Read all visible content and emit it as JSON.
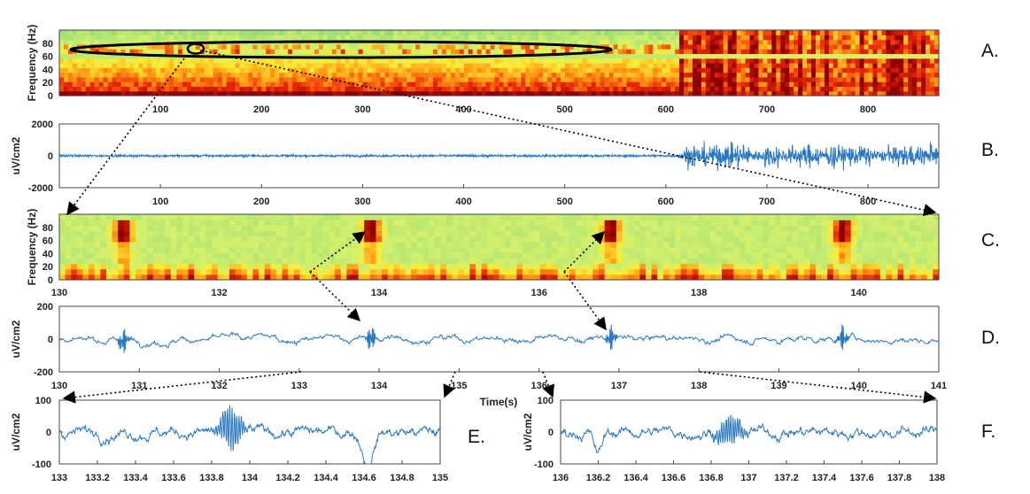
{
  "chart_data": [
    {
      "id": "A",
      "type": "heatmap",
      "panel_label": "A.",
      "ylabel": "Frequency (Hz)",
      "xlim": [
        0,
        870
      ],
      "ylim": [
        0,
        100
      ],
      "xticks": [
        100,
        200,
        300,
        400,
        500,
        600,
        700,
        800
      ],
      "yticks": [
        0,
        20,
        40,
        60,
        80
      ],
      "annotation": "ellipse highlights 60-80 Hz high-frequency activity before 610 s; seizure onset ~612 s with broadband power"
    },
    {
      "id": "B",
      "type": "line",
      "panel_label": "B.",
      "ylabel": "uV/cm2",
      "xlim": [
        0,
        870
      ],
      "ylim": [
        -2000,
        2000
      ],
      "xticks": [
        100,
        200,
        300,
        400,
        500,
        600,
        700,
        800
      ],
      "yticks": [
        -2000,
        0,
        2000
      ],
      "onset": 612
    },
    {
      "id": "C",
      "type": "heatmap",
      "panel_label": "C.",
      "ylabel": "Frequency (Hz)",
      "xlim": [
        130,
        141
      ],
      "ylim": [
        0,
        100
      ],
      "xticks": [
        130,
        132,
        134,
        136,
        138,
        140
      ],
      "yticks": [
        0,
        20,
        40,
        60,
        80
      ],
      "hfo_events": [
        130.8,
        133.9,
        136.9,
        139.8
      ]
    },
    {
      "id": "D",
      "type": "line",
      "panel_label": "D.",
      "ylabel": "uV/cm2",
      "xlim": [
        130,
        141
      ],
      "ylim": [
        -200,
        200
      ],
      "xticks": [
        130,
        131,
        132,
        133,
        134,
        135,
        136,
        137,
        138,
        139,
        140,
        141
      ],
      "yticks": [
        -200,
        0,
        200
      ],
      "xlabel": "Time(s)"
    },
    {
      "id": "E",
      "type": "line",
      "panel_label": "E.",
      "ylabel": "uV/cm2",
      "xlim": [
        133,
        135
      ],
      "ylim": [
        -100,
        100
      ],
      "xticks": [
        133,
        133.2,
        133.4,
        133.6,
        133.8,
        134,
        134.2,
        134.4,
        134.6,
        134.8,
        135
      ],
      "yticks": [
        -100,
        0,
        100
      ]
    },
    {
      "id": "F",
      "type": "line",
      "panel_label": "F.",
      "ylabel": "uV/cm2",
      "xlim": [
        136,
        138
      ],
      "ylim": [
        -100,
        100
      ],
      "xticks": [
        136,
        136.2,
        136.4,
        136.6,
        136.8,
        137,
        137.2,
        137.4,
        137.6,
        137.8,
        138
      ],
      "yticks": [
        -100,
        0,
        100
      ]
    }
  ]
}
